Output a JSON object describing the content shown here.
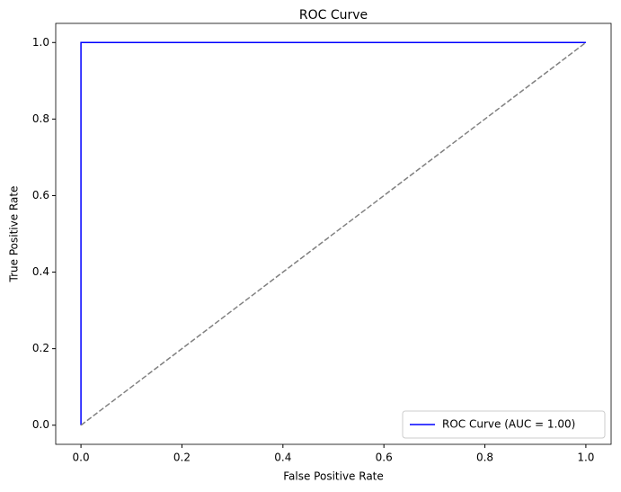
{
  "chart_data": {
    "type": "line",
    "title": "ROC Curve",
    "x_label": "False Positive Rate",
    "y_label": "True Positive Rate",
    "xlim": [
      -0.05,
      1.05
    ],
    "ylim": [
      -0.05,
      1.05
    ],
    "xticks": [
      {
        "value": 0,
        "label": "0.0"
      },
      {
        "value": 0.2,
        "label": "0.2"
      },
      {
        "value": 0.4,
        "label": "0.4"
      },
      {
        "value": 0.6,
        "label": "0.6"
      },
      {
        "value": 0.8,
        "label": "0.8"
      },
      {
        "value": 1,
        "label": "1.0"
      }
    ],
    "yticks": [
      {
        "value": 0,
        "label": "0.0"
      },
      {
        "value": 0.2,
        "label": "0.2"
      },
      {
        "value": 0.4,
        "label": "0.4"
      },
      {
        "value": 0.6,
        "label": "0.6"
      },
      {
        "value": 0.8,
        "label": "0.8"
      },
      {
        "value": 1,
        "label": "1.0"
      }
    ],
    "legend": "lower right",
    "series": [
      {
        "name": "ROC Curve (AUC = 1.00)",
        "color": "#0000ff",
        "x": [
          0,
          0,
          1
        ],
        "values": [
          0,
          1,
          1
        ]
      },
      {
        "color": "#808080",
        "dashed": true,
        "x": [
          0,
          1
        ],
        "values": [
          0,
          1
        ]
      }
    ]
  }
}
